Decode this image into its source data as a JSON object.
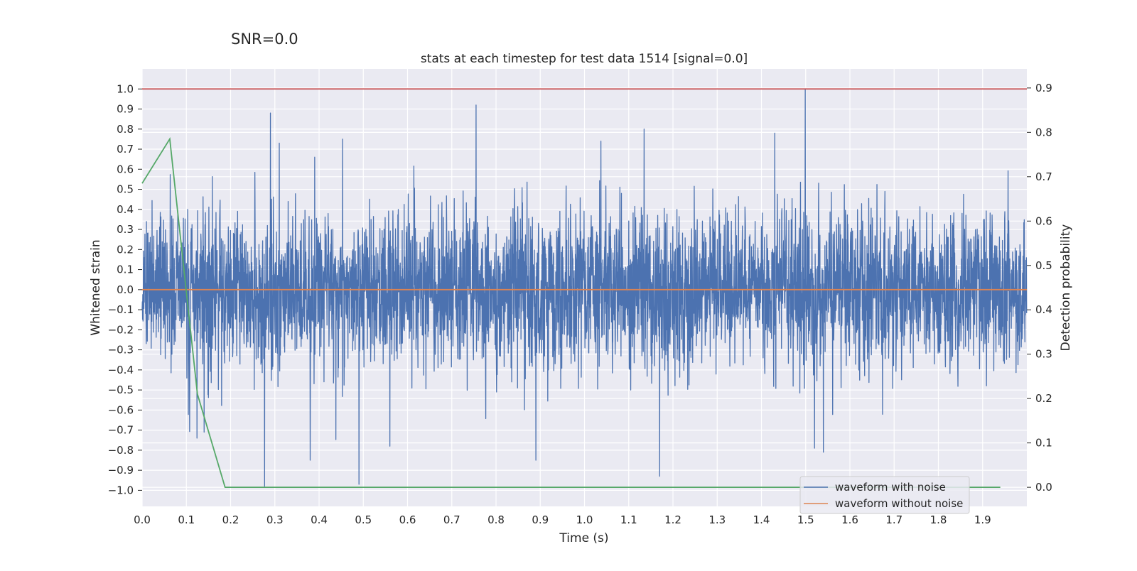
{
  "suptitle": "SNR=0.0",
  "title": "stats at each timestep for test data 1514 [signal=0.0]",
  "chart_data": {
    "type": "line",
    "xlabel": "Time (s)",
    "ylabel_left": "Whitened strain",
    "ylabel_right": "Detection probability",
    "xlim": [
      0.0,
      2.0
    ],
    "ylim_left": [
      -1.08,
      1.1
    ],
    "ylim_right": [
      -0.043,
      0.943
    ],
    "x_ticks": [
      0.0,
      0.1,
      0.2,
      0.3,
      0.4,
      0.5,
      0.6,
      0.7,
      0.8,
      0.9,
      1.0,
      1.1,
      1.2,
      1.3,
      1.4,
      1.5,
      1.6,
      1.7,
      1.8,
      1.9
    ],
    "x_tick_labels": [
      "0.0",
      "0.1",
      "0.2",
      "0.3",
      "0.4",
      "0.5",
      "0.6",
      "0.7",
      "0.8",
      "0.9",
      "1.0",
      "1.1",
      "1.2",
      "1.3",
      "1.4",
      "1.5",
      "1.6",
      "1.7",
      "1.8",
      "1.9"
    ],
    "y_left_ticks": [
      1.0,
      0.9,
      0.8,
      0.7,
      0.6,
      0.5,
      0.4,
      0.3,
      0.2,
      0.1,
      0.0,
      -0.1,
      -0.2,
      -0.3,
      -0.4,
      -0.5,
      -0.6,
      -0.7,
      -0.8,
      -0.9,
      -1.0
    ],
    "y_left_tick_labels": [
      "1.0",
      "0.9",
      "0.8",
      "0.7",
      "0.6",
      "0.5",
      "0.4",
      "0.3",
      "0.2",
      "0.1",
      "0.0",
      "−0.1",
      "−0.2",
      "−0.3",
      "−0.4",
      "−0.5",
      "−0.6",
      "−0.7",
      "−0.8",
      "−0.9",
      "−1.0"
    ],
    "y_right_ticks": [
      0.9,
      0.8,
      0.7,
      0.6,
      0.5,
      0.4,
      0.3,
      0.2,
      0.1,
      0.0
    ],
    "y_right_tick_labels": [
      "0.9",
      "0.8",
      "0.7",
      "0.6",
      "0.5",
      "0.4",
      "0.3",
      "0.2",
      "0.1",
      "0.0"
    ],
    "grid": true,
    "legend_placement": "lower-right",
    "series": [
      {
        "name": "waveform with noise",
        "axis": "left",
        "color": "#4c72b0",
        "sample_rate_hz": 2048,
        "amplitude_scale": 0.2,
        "peaks": [
          {
            "x": 0.29,
            "y": 0.88
          },
          {
            "x": 0.755,
            "y": 0.92
          },
          {
            "x": 1.499,
            "y": 1.0
          },
          {
            "x": 0.277,
            "y": -0.98
          },
          {
            "x": 0.49,
            "y": -0.97
          },
          {
            "x": 1.17,
            "y": -0.93
          },
          {
            "x": 0.89,
            "y": -0.85
          },
          {
            "x": 1.135,
            "y": 0.8
          },
          {
            "x": 1.43,
            "y": 0.78
          },
          {
            "x": 0.31,
            "y": 0.73
          },
          {
            "x": 0.124,
            "y": -0.74
          },
          {
            "x": 1.52,
            "y": -0.79
          },
          {
            "x": 1.54,
            "y": -0.81
          },
          {
            "x": 0.56,
            "y": -0.78
          },
          {
            "x": 0.38,
            "y": -0.85
          },
          {
            "x": 0.14,
            "y": -0.71
          },
          {
            "x": 1.037,
            "y": 0.74
          },
          {
            "x": 0.39,
            "y": 0.66
          }
        ]
      },
      {
        "name": "waveform without noise",
        "axis": "left",
        "color": "#dd8452",
        "x": [
          0.0,
          2.0
        ],
        "y": [
          0.0,
          0.0
        ]
      },
      {
        "name": "",
        "axis": "right",
        "color": "#55a868",
        "x": [
          0.0,
          0.0625,
          0.125,
          0.1875,
          0.25,
          1.94
        ],
        "y": [
          0.685,
          0.785,
          0.21,
          0.0,
          0.0,
          0.0
        ]
      },
      {
        "name": "",
        "axis": "left",
        "color": "#c44e52",
        "x": [
          0.0,
          2.0
        ],
        "y": [
          1.0,
          1.0
        ]
      }
    ]
  }
}
